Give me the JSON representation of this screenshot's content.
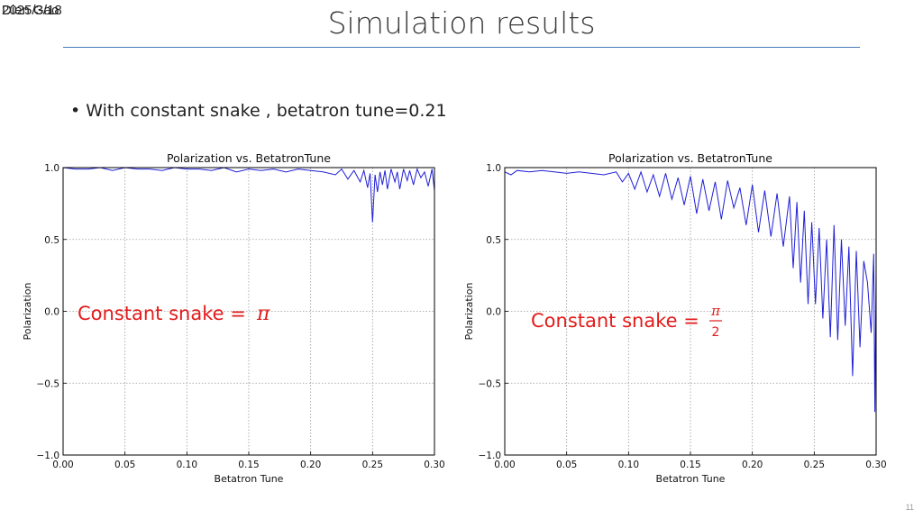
{
  "header": {
    "date_overlap": [
      "2025/3/18",
      "Dien Gao"
    ],
    "title": "Simulation results"
  },
  "bullet": {
    "marker": "•",
    "text": "With constant snake , betatron tune=0.21"
  },
  "page_number": "11",
  "colors": {
    "series": "#1f1fd6",
    "annotation": "#e31b1b",
    "rule": "#4a7ab8"
  },
  "chart_data": [
    {
      "type": "line",
      "title": "Polarization vs. BetatronTune",
      "xlabel": "Betatron Tune",
      "ylabel": "Polarization",
      "xlim": [
        0.0,
        0.3
      ],
      "ylim": [
        -1.0,
        1.0
      ],
      "x_ticks": [
        "0.00",
        "0.05",
        "0.10",
        "0.15",
        "0.20",
        "0.25",
        "0.30"
      ],
      "y_ticks": [
        "−1.0",
        "−0.5",
        "0.0",
        "0.5",
        "1.0"
      ],
      "grid": true,
      "annotation": {
        "prefix": "Constant snake = ",
        "symbol": "π",
        "denominator": ""
      },
      "series": [
        {
          "x": [
            0.0,
            0.01,
            0.02,
            0.03,
            0.04,
            0.05,
            0.06,
            0.07,
            0.08,
            0.09,
            0.1,
            0.11,
            0.12,
            0.13,
            0.14,
            0.15,
            0.16,
            0.17,
            0.18,
            0.19,
            0.2,
            0.21,
            0.22,
            0.225,
            0.23,
            0.235,
            0.24,
            0.243,
            0.246,
            0.248,
            0.25,
            0.252,
            0.254,
            0.256,
            0.258,
            0.26,
            0.262,
            0.265,
            0.268,
            0.27,
            0.272,
            0.275,
            0.278,
            0.28,
            0.283,
            0.286,
            0.289,
            0.292,
            0.295,
            0.298,
            0.3
          ],
          "y": [
            1.0,
            0.99,
            0.99,
            1.0,
            0.98,
            1.0,
            0.99,
            0.99,
            0.98,
            1.0,
            0.99,
            0.99,
            0.98,
            1.0,
            0.97,
            0.99,
            0.98,
            0.99,
            0.97,
            0.99,
            0.98,
            0.97,
            0.95,
            0.99,
            0.92,
            0.98,
            0.9,
            0.98,
            0.86,
            0.96,
            0.62,
            0.95,
            0.83,
            0.97,
            0.88,
            0.98,
            0.85,
            0.99,
            0.9,
            0.97,
            0.85,
            0.99,
            0.91,
            0.98,
            0.88,
            0.99,
            0.93,
            0.97,
            0.87,
            0.99,
            0.84
          ]
        }
      ]
    },
    {
      "type": "line",
      "title": "Polarization vs. BetatronTune",
      "xlabel": "Betatron Tune",
      "ylabel": "Polarization",
      "xlim": [
        0.0,
        0.3
      ],
      "ylim": [
        -1.0,
        1.0
      ],
      "x_ticks": [
        "0.00",
        "0.05",
        "0.10",
        "0.15",
        "0.20",
        "0.25",
        "0.30"
      ],
      "y_ticks": [
        "−1.0",
        "−0.5",
        "0.0",
        "0.5",
        "1.0"
      ],
      "grid": true,
      "annotation": {
        "prefix": "Constant snake = ",
        "symbol": "π",
        "denominator": "2"
      },
      "series": [
        {
          "x": [
            0.0,
            0.005,
            0.01,
            0.02,
            0.03,
            0.04,
            0.05,
            0.06,
            0.07,
            0.08,
            0.09,
            0.095,
            0.1,
            0.105,
            0.11,
            0.115,
            0.12,
            0.125,
            0.13,
            0.135,
            0.14,
            0.145,
            0.15,
            0.155,
            0.16,
            0.165,
            0.17,
            0.175,
            0.18,
            0.185,
            0.19,
            0.195,
            0.2,
            0.205,
            0.21,
            0.215,
            0.22,
            0.225,
            0.23,
            0.233,
            0.236,
            0.239,
            0.242,
            0.245,
            0.248,
            0.251,
            0.254,
            0.257,
            0.26,
            0.263,
            0.266,
            0.269,
            0.272,
            0.275,
            0.278,
            0.281,
            0.284,
            0.287,
            0.29,
            0.293,
            0.296,
            0.298,
            0.299,
            0.3
          ],
          "y": [
            0.97,
            0.95,
            0.98,
            0.97,
            0.98,
            0.97,
            0.96,
            0.97,
            0.96,
            0.95,
            0.97,
            0.9,
            0.96,
            0.85,
            0.97,
            0.83,
            0.95,
            0.8,
            0.96,
            0.78,
            0.93,
            0.74,
            0.94,
            0.68,
            0.92,
            0.7,
            0.9,
            0.64,
            0.91,
            0.72,
            0.86,
            0.6,
            0.88,
            0.55,
            0.84,
            0.52,
            0.82,
            0.45,
            0.8,
            0.3,
            0.76,
            0.2,
            0.7,
            0.05,
            0.62,
            0.05,
            0.58,
            -0.05,
            0.5,
            -0.18,
            0.6,
            -0.2,
            0.5,
            -0.1,
            0.45,
            -0.45,
            0.42,
            -0.25,
            0.35,
            0.2,
            -0.15,
            0.4,
            -0.7,
            0.3
          ]
        }
      ]
    }
  ]
}
